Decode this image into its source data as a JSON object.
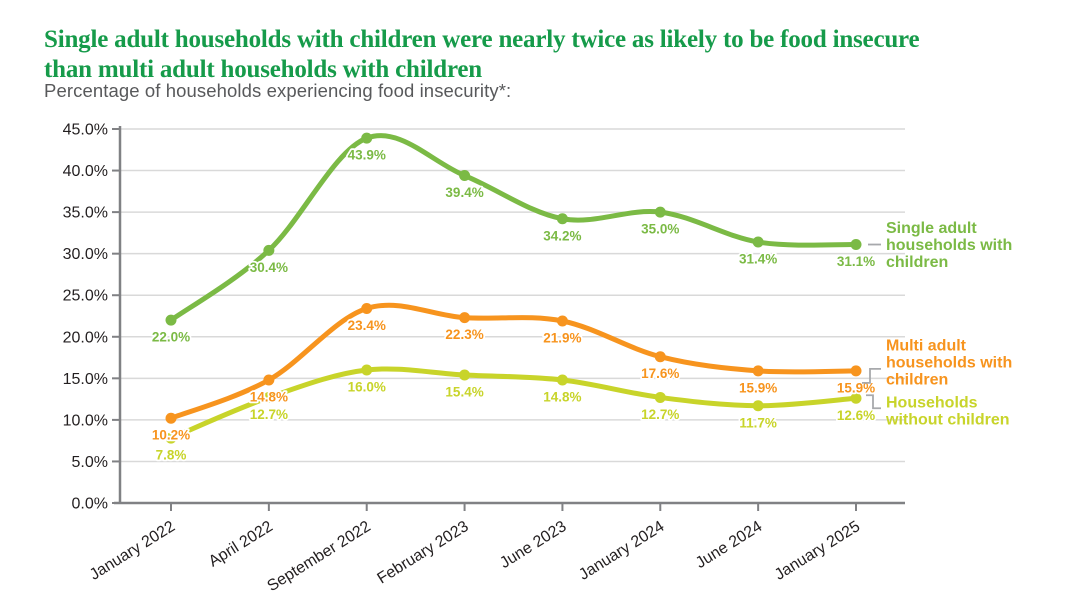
{
  "header": {
    "title_lines": [
      "Single adult households with children were nearly twice as likely to be food insecure",
      "than multi adult households with children"
    ],
    "title_color": "#169b4a",
    "subtitle": "Percentage of households experiencing food insecurity*:"
  },
  "chart_data": {
    "type": "line",
    "title": "Single adult households with children were nearly twice as likely to be food insecure than multi adult households with children",
    "subtitle": "Percentage of households experiencing food insecurity*:",
    "x_categories": [
      "January 2022",
      "April 2022",
      "September 2022",
      "February 2023",
      "June 2023",
      "January 2024",
      "June 2024",
      "January 2025"
    ],
    "series": [
      {
        "name": "Single adult households with children",
        "legend_lines": [
          "Single adult",
          "households with",
          "children"
        ],
        "color": "#7bba45",
        "values": [
          22.0,
          30.4,
          43.9,
          39.4,
          34.2,
          35.0,
          31.4,
          31.1
        ]
      },
      {
        "name": "Multi adult households with children",
        "legend_lines": [
          "Multi adult",
          "households with",
          "children"
        ],
        "color": "#f7941e",
        "values": [
          10.2,
          14.8,
          23.4,
          22.3,
          21.9,
          17.6,
          15.9,
          15.9
        ]
      },
      {
        "name": "Households without children",
        "legend_lines": [
          "Households",
          "without children"
        ],
        "color": "#c8d42a",
        "values": [
          7.8,
          12.7,
          16.0,
          15.4,
          14.8,
          12.7,
          11.7,
          12.6
        ]
      }
    ],
    "xlabel": "",
    "ylabel": "",
    "ylim": [
      0,
      45
    ],
    "ytick_step": 5,
    "ytick_labels": [
      "0.0%",
      "5.0%",
      "10.0%",
      "15.0%",
      "20.0%",
      "25.0%",
      "30.0%",
      "35.0%",
      "40.0%",
      "45.0%"
    ],
    "value_label_format": "{v}%",
    "grid": true,
    "legend_position": "right"
  },
  "colors": {
    "grid": "#d9d9d9",
    "axis": "#808184",
    "tick_text": "#231f20",
    "legend_connector": "#a7a9ac"
  }
}
